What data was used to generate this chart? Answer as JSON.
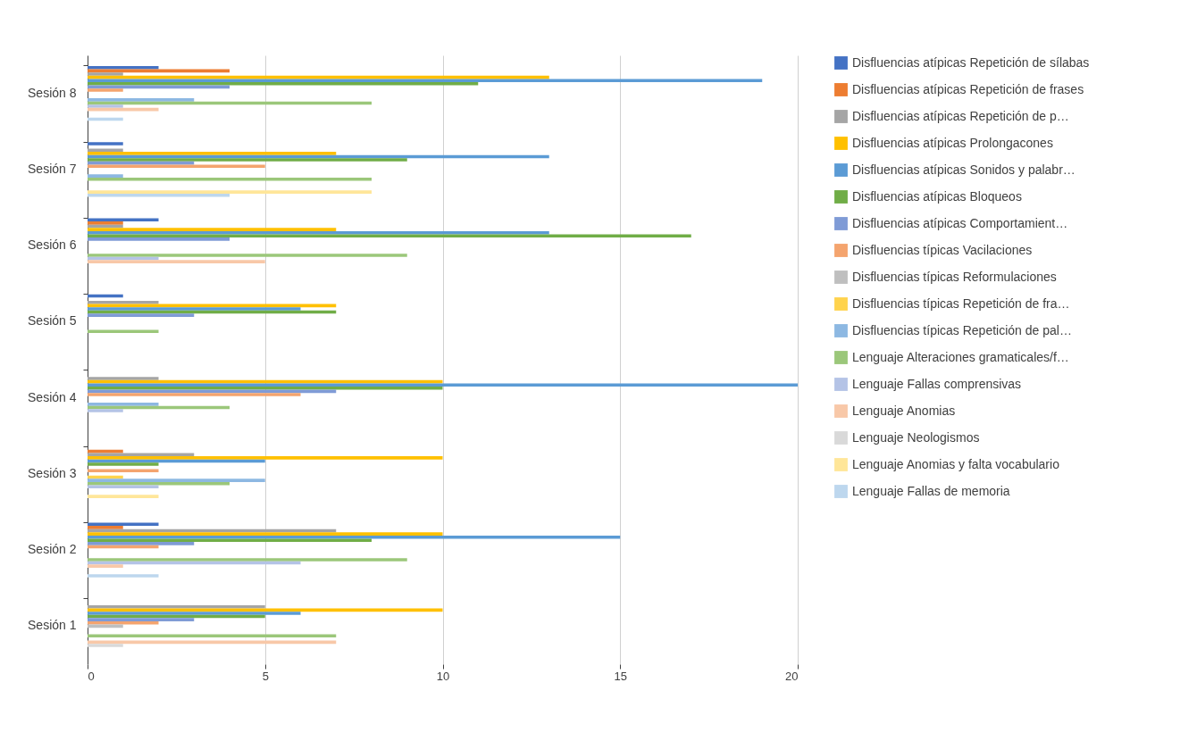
{
  "chart_data": {
    "type": "bar",
    "orientation": "horizontal",
    "categories": [
      "Sesión 8",
      "Sesión 7",
      "Sesión 6",
      "Sesión 5",
      "Sesión 4",
      "Sesión 3",
      "Sesión 2",
      "Sesión 1"
    ],
    "xlim": [
      0,
      20
    ],
    "xticks": [
      0,
      5,
      10,
      15,
      20
    ],
    "grid": "x",
    "legend": "top right",
    "series": [
      {
        "name": "Disfluencias atípicas Repetición de sílabas",
        "color": "#4472c4",
        "values": [
          2,
          1,
          2,
          1,
          0,
          0,
          2,
          0
        ]
      },
      {
        "name": "Disfluencias atípicas Repetición de frases",
        "color": "#ed7d31",
        "values": [
          4,
          0,
          1,
          0,
          0,
          1,
          1,
          0
        ]
      },
      {
        "name": "Disfluencias atípicas Repetición de p…",
        "color": "#a5a5a5",
        "values": [
          1,
          1,
          1,
          2,
          2,
          3,
          7,
          5
        ]
      },
      {
        "name": "Disfluencias atípicas Prolongacones",
        "color": "#ffc000",
        "values": [
          13,
          7,
          7,
          7,
          10,
          10,
          10,
          10
        ]
      },
      {
        "name": "Disfluencias atípicas Sonidos y palabr…",
        "color": "#5b9bd5",
        "values": [
          19,
          13,
          13,
          6,
          20,
          5,
          15,
          6
        ]
      },
      {
        "name": "Disfluencias atípicas Bloqueos",
        "color": "#70ad47",
        "values": [
          11,
          9,
          17,
          7,
          10,
          2,
          8,
          5
        ]
      },
      {
        "name": "Disfluencias atípicas Comportamient…",
        "color": "#7f9bd6",
        "values": [
          4,
          3,
          4,
          3,
          7,
          0,
          3,
          3
        ]
      },
      {
        "name": "Disfluencias típicas Vacilaciones",
        "color": "#f4a46e",
        "values": [
          1,
          5,
          0,
          0,
          6,
          2,
          2,
          2
        ]
      },
      {
        "name": "Disfluencias típicas Reformulaciones",
        "color": "#bfbfbf",
        "values": [
          0,
          0,
          0,
          0,
          0,
          0,
          0,
          1
        ]
      },
      {
        "name": "Disfluencias típicas Repetición de fra…",
        "color": "#ffd34d",
        "values": [
          0,
          0,
          0,
          0,
          0,
          1,
          0,
          0
        ]
      },
      {
        "name": "Disfluencias típicas Repetición de pal…",
        "color": "#8db8e2",
        "values": [
          3,
          1,
          0,
          0,
          2,
          5,
          0,
          0
        ]
      },
      {
        "name": "Lenguaje Alteraciones gramaticales/f…",
        "color": "#9bc77a",
        "values": [
          8,
          8,
          9,
          2,
          4,
          4,
          9,
          7
        ]
      },
      {
        "name": "Lenguaje Fallas comprensivas",
        "color": "#b4c3e6",
        "values": [
          1,
          0,
          2,
          0,
          1,
          2,
          6,
          0
        ]
      },
      {
        "name": "Lenguaje Anomias",
        "color": "#f8c8a8",
        "values": [
          2,
          0,
          5,
          0,
          0,
          0,
          1,
          7
        ]
      },
      {
        "name": "Lenguaje Neologismos",
        "color": "#d9d9d9",
        "values": [
          0,
          0,
          0,
          0,
          0,
          0,
          0,
          1
        ]
      },
      {
        "name": "Lenguaje Anomias y falta vocabulario",
        "color": "#ffe699",
        "values": [
          0,
          8,
          0,
          0,
          0,
          2,
          0,
          0
        ]
      },
      {
        "name": "Lenguaje Fallas de memoria",
        "color": "#bdd7ee",
        "values": [
          1,
          4,
          0,
          0,
          0,
          0,
          2,
          0
        ]
      }
    ]
  }
}
